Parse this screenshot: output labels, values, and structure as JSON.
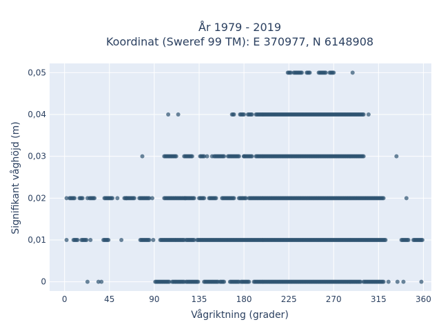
{
  "chart_data": {
    "type": "scatter",
    "title_line1": "År 1979 - 2019",
    "title_line2": "Koordinat (Sweref 99 TM): E 370977, N 6148908",
    "xlabel": "Vågriktning (grader)",
    "ylabel": "Signifikant våghöjd (m)",
    "xlim": [
      -15,
      368
    ],
    "ylim": [
      -0.0022,
      0.0522
    ],
    "x_ticks": [
      0,
      45,
      90,
      135,
      180,
      225,
      270,
      315,
      360
    ],
    "x_tick_labels": [
      "0",
      "45",
      "90",
      "135",
      "180",
      "225",
      "270",
      "315",
      "360"
    ],
    "y_ticks": [
      0,
      0.01,
      0.02,
      0.03,
      0.04,
      0.05
    ],
    "y_tick_labels": [
      "0",
      "0,01",
      "0,02",
      "0,03",
      "0,04",
      "0,05"
    ],
    "grid": true,
    "colors": {
      "marker": "#2e5270",
      "plot_bg": "#e5ecf6",
      "grid": "#ffffff"
    },
    "series": [
      {
        "y": 0.05,
        "segments": [
          [
            224,
            227
          ],
          [
            230,
            238
          ],
          [
            243,
            246
          ],
          [
            255,
            262
          ],
          [
            266,
            270
          ]
        ],
        "points": [
          289
        ]
      },
      {
        "y": 0.04,
        "segments": [
          [
            168,
            170
          ],
          [
            176,
            180
          ],
          [
            184,
            188
          ],
          [
            192,
            300
          ]
        ],
        "points": [
          104,
          114,
          305
        ]
      },
      {
        "y": 0.03,
        "segments": [
          [
            100,
            112
          ],
          [
            120,
            128
          ],
          [
            136,
            140
          ],
          [
            150,
            160
          ],
          [
            164,
            175
          ],
          [
            180,
            188
          ],
          [
            192,
            300
          ]
        ],
        "points": [
          78,
          143,
          148,
          180,
          333
        ]
      },
      {
        "y": 0.02,
        "segments": [
          [
            5,
            10
          ],
          [
            15,
            18
          ],
          [
            25,
            30
          ],
          [
            40,
            48
          ],
          [
            60,
            70
          ],
          [
            75,
            85
          ],
          [
            100,
            130
          ],
          [
            135,
            140
          ],
          [
            145,
            152
          ],
          [
            158,
            170
          ],
          [
            175,
            182
          ],
          [
            185,
            320
          ]
        ],
        "points": [
          2,
          23,
          53,
          62,
          88,
          121,
          343
        ]
      },
      {
        "y": 0.01,
        "segments": [
          [
            9,
            12
          ],
          [
            17,
            22
          ],
          [
            39,
            44
          ],
          [
            76,
            85
          ],
          [
            96,
            120
          ],
          [
            122,
            130
          ],
          [
            133,
            322
          ],
          [
            338,
            345
          ],
          [
            350,
            359
          ]
        ],
        "points": [
          2,
          13,
          26,
          57,
          89
        ]
      },
      {
        "y": 0,
        "segments": [
          [
            91,
            105
          ],
          [
            108,
            120
          ],
          [
            122,
            134
          ],
          [
            140,
            154
          ],
          [
            156,
            160
          ],
          [
            166,
            175
          ],
          [
            177,
            185
          ],
          [
            190,
            297
          ],
          [
            300,
            320
          ]
        ],
        "points": [
          23,
          34,
          37,
          325,
          334,
          340,
          358
        ]
      }
    ]
  }
}
